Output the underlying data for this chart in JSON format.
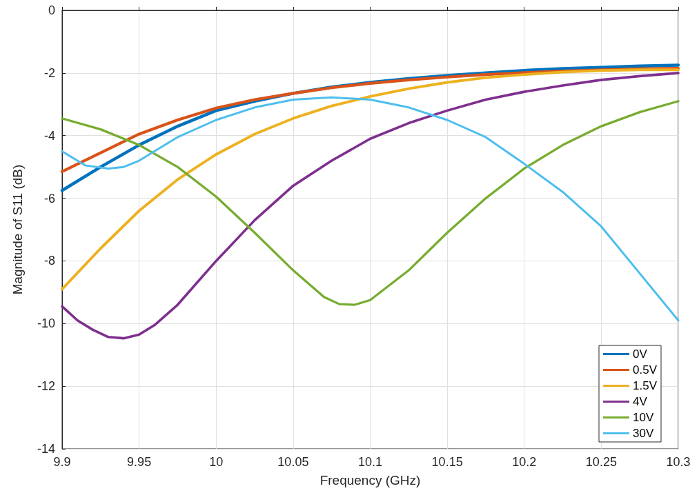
{
  "chart_data": {
    "type": "line",
    "xlabel": "Frequency (GHz)",
    "ylabel": "Magnitude of S11 (dB)",
    "xlim": [
      9.9,
      10.3
    ],
    "ylim": [
      -14,
      0
    ],
    "xticks": [
      9.9,
      9.95,
      10,
      10.05,
      10.1,
      10.15,
      10.2,
      10.25,
      10.3
    ],
    "yticks": [
      -14,
      -12,
      -10,
      -8,
      -6,
      -4,
      -2,
      0
    ],
    "grid": true,
    "legend": "bottom right",
    "marker": "none",
    "line_style": "solid",
    "series": [
      {
        "name": "0V",
        "color": "#0072bd",
        "x": [
          9.9,
          9.925,
          9.95,
          9.975,
          10,
          10.025,
          10.05,
          10.075,
          10.1,
          10.125,
          10.15,
          10.175,
          10.2,
          10.225,
          10.25,
          10.275,
          10.3
        ],
        "values": [
          -5.75,
          -5.0,
          -4.3,
          -3.7,
          -3.2,
          -2.9,
          -2.65,
          -2.45,
          -2.3,
          -2.18,
          -2.08,
          -2.0,
          -1.92,
          -1.86,
          -1.82,
          -1.78,
          -1.75
        ]
      },
      {
        "name": "0.5V",
        "color": "#d95319",
        "x": [
          9.9,
          9.925,
          9.95,
          9.975,
          10,
          10.025,
          10.05,
          10.075,
          10.1,
          10.125,
          10.15,
          10.175,
          10.2,
          10.225,
          10.25,
          10.275,
          10.3
        ],
        "values": [
          -5.15,
          -4.55,
          -3.95,
          -3.5,
          -3.12,
          -2.85,
          -2.65,
          -2.47,
          -2.33,
          -2.22,
          -2.13,
          -2.05,
          -1.99,
          -1.94,
          -1.9,
          -1.87,
          -1.85
        ]
      },
      {
        "name": "1.5V",
        "color": "#edb120",
        "x": [
          9.9,
          9.925,
          9.95,
          9.975,
          10,
          10.025,
          10.05,
          10.075,
          10.1,
          10.125,
          10.15,
          10.175,
          10.2,
          10.225,
          10.25,
          10.275,
          10.3
        ],
        "values": [
          -8.9,
          -7.6,
          -6.4,
          -5.4,
          -4.6,
          -3.95,
          -3.45,
          -3.05,
          -2.75,
          -2.5,
          -2.3,
          -2.15,
          -2.05,
          -1.97,
          -1.92,
          -1.9,
          -1.9
        ]
      },
      {
        "name": "4V",
        "color": "#7e2f8e",
        "x": [
          9.9,
          9.91,
          9.92,
          9.93,
          9.94,
          9.95,
          9.96,
          9.975,
          10,
          10.025,
          10.05,
          10.075,
          10.1,
          10.125,
          10.15,
          10.175,
          10.2,
          10.225,
          10.25,
          10.275,
          10.3
        ],
        "values": [
          -9.45,
          -9.9,
          -10.2,
          -10.43,
          -10.47,
          -10.35,
          -10.05,
          -9.4,
          -8.0,
          -6.7,
          -5.6,
          -4.8,
          -4.1,
          -3.6,
          -3.2,
          -2.85,
          -2.6,
          -2.4,
          -2.22,
          -2.1,
          -2.0
        ]
      },
      {
        "name": "10V",
        "color": "#77ac30",
        "x": [
          9.9,
          9.925,
          9.95,
          9.975,
          10,
          10.025,
          10.05,
          10.07,
          10.08,
          10.09,
          10.1,
          10.125,
          10.15,
          10.175,
          10.2,
          10.225,
          10.25,
          10.275,
          10.3
        ],
        "values": [
          -3.45,
          -3.8,
          -4.3,
          -5.0,
          -5.95,
          -7.1,
          -8.3,
          -9.15,
          -9.38,
          -9.4,
          -9.25,
          -8.3,
          -7.1,
          -6.0,
          -5.05,
          -4.3,
          -3.7,
          -3.25,
          -2.9
        ]
      },
      {
        "name": "30V",
        "color": "#4dbeee",
        "x": [
          9.9,
          9.915,
          9.93,
          9.94,
          9.95,
          9.975,
          10,
          10.025,
          10.05,
          10.075,
          10.1,
          10.125,
          10.15,
          10.175,
          10.2,
          10.225,
          10.25,
          10.275,
          10.3
        ],
        "values": [
          -4.5,
          -4.95,
          -5.05,
          -5.0,
          -4.8,
          -4.05,
          -3.5,
          -3.1,
          -2.85,
          -2.78,
          -2.85,
          -3.1,
          -3.5,
          -4.05,
          -4.9,
          -5.8,
          -6.9,
          -8.4,
          -9.9
        ]
      }
    ]
  }
}
